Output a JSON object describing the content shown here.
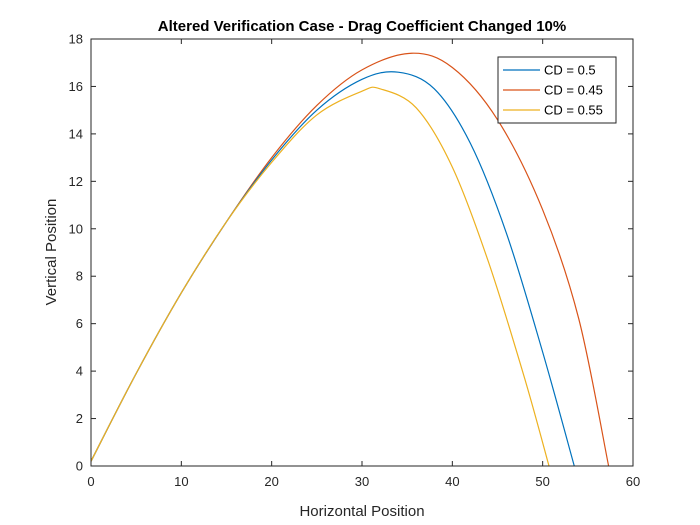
{
  "chart_data": {
    "type": "line",
    "title": "Altered Verification Case - Drag Coefficient Changed 10%",
    "xlabel": "Horizontal Position",
    "ylabel": "Vertical Position",
    "xlim": [
      0,
      60
    ],
    "ylim": [
      0,
      18
    ],
    "xticks": [
      0,
      10,
      20,
      30,
      40,
      50,
      60
    ],
    "yticks": [
      0,
      2,
      4,
      6,
      8,
      10,
      12,
      14,
      16,
      18
    ],
    "grid": false,
    "legend_position": "top-right",
    "series": [
      {
        "name": "CD = 0.5",
        "color": "#0072BD",
        "x": [
          0,
          5,
          10,
          15,
          20,
          25,
          30,
          34,
          38,
          42,
          46,
          50,
          53.5
        ],
        "y": [
          0.2,
          3.9,
          7.3,
          10.3,
          12.9,
          15.0,
          16.3,
          16.6,
          15.9,
          13.6,
          9.8,
          4.8,
          0
        ]
      },
      {
        "name": "CD = 0.45",
        "color": "#D95319",
        "x": [
          0,
          5,
          10,
          15,
          20,
          25,
          30,
          35.5,
          40,
          45,
          50,
          54,
          57.3
        ],
        "y": [
          0.2,
          3.9,
          7.3,
          10.3,
          13.0,
          15.2,
          16.7,
          17.4,
          16.8,
          14.6,
          10.8,
          6.2,
          0
        ]
      },
      {
        "name": "CD = 0.55",
        "color": "#EDB120",
        "x": [
          0,
          5,
          10,
          15,
          20,
          25,
          30,
          32,
          36,
          40,
          44,
          48,
          50.7
        ],
        "y": [
          0.2,
          3.9,
          7.3,
          10.3,
          12.8,
          14.8,
          15.8,
          15.9,
          15.1,
          12.6,
          8.6,
          3.7,
          0
        ]
      }
    ]
  }
}
